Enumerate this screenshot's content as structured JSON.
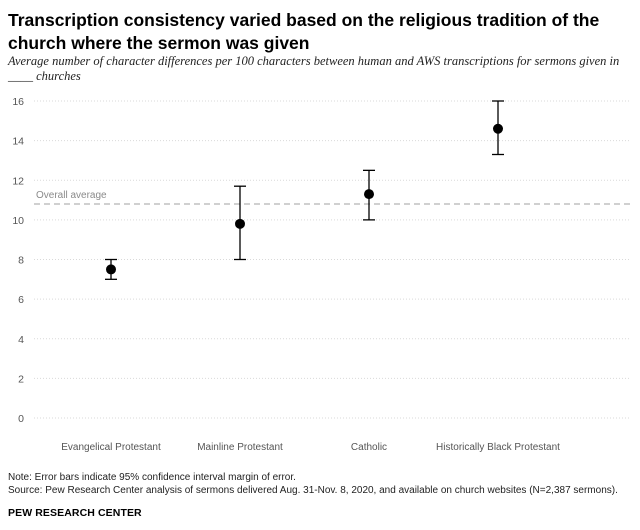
{
  "header": {
    "title": "Transcription consistency varied based on the religious tradition of the church where the sermon was given",
    "subtitle": "Average number of character differences per 100 characters between human and AWS transcriptions for sermons given in ____ churches"
  },
  "chart_data": {
    "type": "scatter",
    "categories": [
      "Evangelical Protestant",
      "Mainline Protestant",
      "Catholic",
      "Historically Black Protestant"
    ],
    "values": [
      7.5,
      9.8,
      11.3,
      14.6
    ],
    "error_low": [
      7.0,
      8.0,
      10.0,
      13.3
    ],
    "error_high": [
      8.0,
      11.7,
      12.5,
      16.0
    ],
    "yticks": [
      0,
      2,
      4,
      6,
      8,
      10,
      12,
      14,
      16
    ],
    "ylim": [
      0,
      16
    ],
    "reference_line": {
      "label": "Overall average",
      "value": 10.8
    },
    "xlabel": "",
    "ylabel": "",
    "grid": true
  },
  "footer": {
    "note": "Note: Error bars indicate 95% confidence interval margin of error.",
    "source": "Source: Pew Research Center analysis of sermons delivered Aug. 31-Nov. 8, 2020, and available on church websites (N=2,387 sermons).",
    "brand": "PEW RESEARCH CENTER"
  },
  "colors": {
    "marker": "#000000",
    "grid": "#d9d9d9",
    "reference": "#b3b3b3",
    "axis_text": "#555555"
  }
}
